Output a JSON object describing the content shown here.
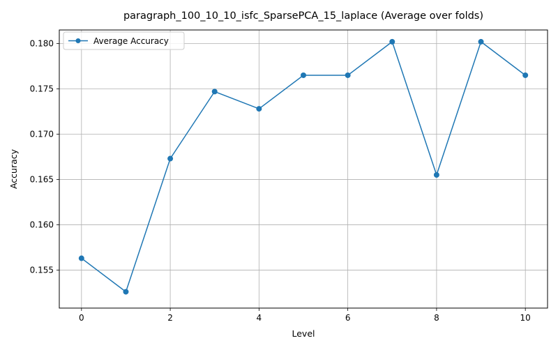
{
  "chart_data": {
    "type": "line",
    "title": "paragraph_100_10_10_isfc_SparsePCA_15_laplace (Average over folds)",
    "xlabel": "Level",
    "ylabel": "Accuracy",
    "xlim": [
      -0.5,
      10.5
    ],
    "ylim": [
      0.1508,
      0.1815
    ],
    "xticks": [
      0,
      2,
      4,
      6,
      8,
      10
    ],
    "yticks": [
      0.155,
      0.16,
      0.165,
      0.17,
      0.175,
      0.18
    ],
    "ytick_labels": [
      "0.155",
      "0.160",
      "0.165",
      "0.170",
      "0.175",
      "0.180"
    ],
    "grid": true,
    "legend_position": "top-left",
    "series": [
      {
        "name": "Average Accuracy",
        "color": "#1f77b4",
        "marker": "circle",
        "x": [
          0,
          1,
          2,
          3,
          4,
          5,
          6,
          7,
          8,
          9,
          10
        ],
        "y": [
          0.1563,
          0.1526,
          0.1673,
          0.1747,
          0.1728,
          0.1765,
          0.1765,
          0.1802,
          0.1655,
          0.1802,
          0.1765
        ]
      }
    ]
  }
}
